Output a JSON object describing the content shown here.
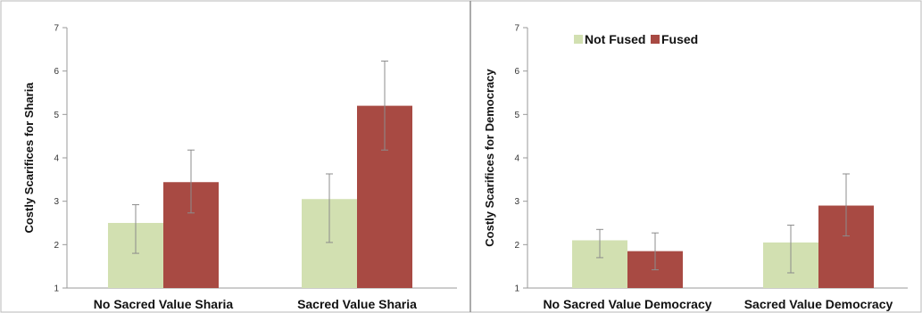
{
  "series_colors": [
    "#d2e0b1",
    "#a84a43"
  ],
  "chart_data": [
    {
      "type": "bar",
      "title": "",
      "xlabel": "",
      "ylabel": "Costly Scarifices for Sharia",
      "ylim": [
        1,
        7
      ],
      "yticks": [
        1,
        2,
        3,
        4,
        5,
        6,
        7
      ],
      "categories": [
        "No Sacred Value Sharia",
        "Sacred Value Sharia"
      ],
      "series": [
        {
          "name": "Not Fused",
          "values": [
            2.5,
            3.05
          ],
          "error_low": [
            1.8,
            2.05
          ],
          "error_high": [
            2.92,
            3.63
          ]
        },
        {
          "name": "Fused",
          "values": [
            3.44,
            5.2
          ],
          "error_low": [
            2.73,
            4.18
          ],
          "error_high": [
            4.18,
            6.23
          ]
        }
      ],
      "legend": "none",
      "grid": false
    },
    {
      "type": "bar",
      "title": "",
      "xlabel": "",
      "ylabel": "Costly Scarifices for Democracy",
      "ylim": [
        1,
        7
      ],
      "yticks": [
        1,
        2,
        3,
        4,
        5,
        6,
        7
      ],
      "categories": [
        "No Sacred Value Democracy",
        "Sacred Value Democracy"
      ],
      "series": [
        {
          "name": "Not Fused",
          "values": [
            2.1,
            2.05
          ],
          "error_low": [
            1.7,
            1.35
          ],
          "error_high": [
            2.35,
            2.45
          ]
        },
        {
          "name": "Fused",
          "values": [
            1.85,
            2.9
          ],
          "error_low": [
            1.42,
            2.2
          ],
          "error_high": [
            2.27,
            3.63
          ]
        }
      ],
      "legend": "top-left",
      "grid": false
    }
  ]
}
